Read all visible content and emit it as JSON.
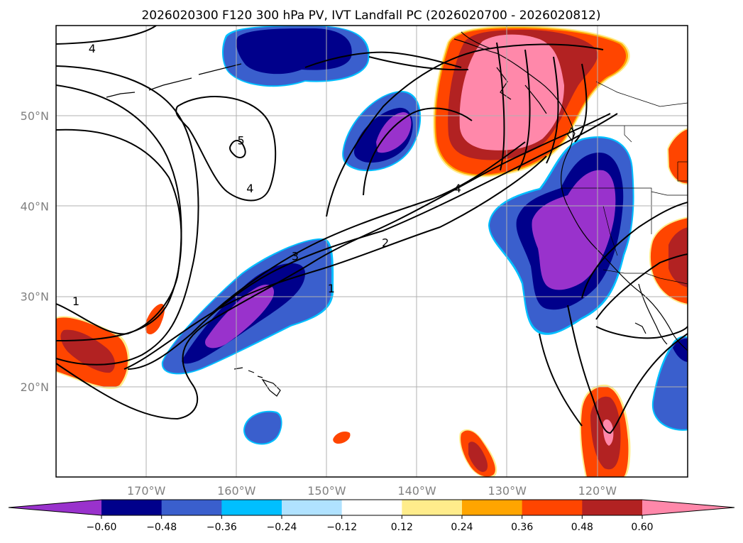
{
  "title": "2026020300 F120 300 hPa PV, IVT Landfall PC (2026020700 - 2026020812)",
  "map": {
    "projection": "PlateCarree",
    "lon_range": [
      -180,
      -110
    ],
    "lat_range": [
      10,
      60
    ],
    "gridlines": true,
    "lon_ticks": [
      {
        "lon": -170,
        "label": "170°W"
      },
      {
        "lon": -160,
        "label": "160°W"
      },
      {
        "lon": -150,
        "label": "150°W"
      },
      {
        "lon": -140,
        "label": "140°W"
      },
      {
        "lon": -130,
        "label": "130°W"
      },
      {
        "lon": -120,
        "label": "120°W"
      }
    ],
    "lat_ticks": [
      {
        "lat": 20,
        "label": "20°N"
      },
      {
        "lat": 30,
        "label": "30°N"
      },
      {
        "lat": 40,
        "label": "40°N"
      },
      {
        "lat": 50,
        "label": "50°N"
      }
    ]
  },
  "colorbar": {
    "levels": [
      -0.6,
      -0.48,
      -0.36,
      -0.24,
      -0.12,
      0.12,
      0.24,
      0.36,
      0.48,
      0.6
    ],
    "labels": [
      "−0.60",
      "−0.48",
      "−0.36",
      "−0.24",
      "−0.12",
      "0.12",
      "0.24",
      "0.36",
      "0.48",
      "0.60"
    ],
    "colors": [
      "#9932CC",
      "#00008B",
      "#3A5FCD",
      "#00BFFF",
      "#B0E2FF",
      "#FFFFFF",
      "#FFEC8B",
      "#FFA500",
      "#FF4500",
      "#B22222",
      "#FF88AA"
    ],
    "extend": "both"
  },
  "contour_labels": [
    {
      "text": "4",
      "lon": -176,
      "lat": 57.5
    },
    {
      "text": "5",
      "lon": -159.5,
      "lat": 47.3
    },
    {
      "text": "4",
      "lon": -158.5,
      "lat": 42.0
    },
    {
      "text": "4",
      "lon": -135.5,
      "lat": 42.0
    },
    {
      "text": "2",
      "lon": -143.5,
      "lat": 36.0
    },
    {
      "text": "3",
      "lon": -153.5,
      "lat": 34.5
    },
    {
      "text": "1",
      "lon": -149.5,
      "lat": 30.9
    },
    {
      "text": "1",
      "lon": -177.8,
      "lat": 29.5
    }
  ]
}
